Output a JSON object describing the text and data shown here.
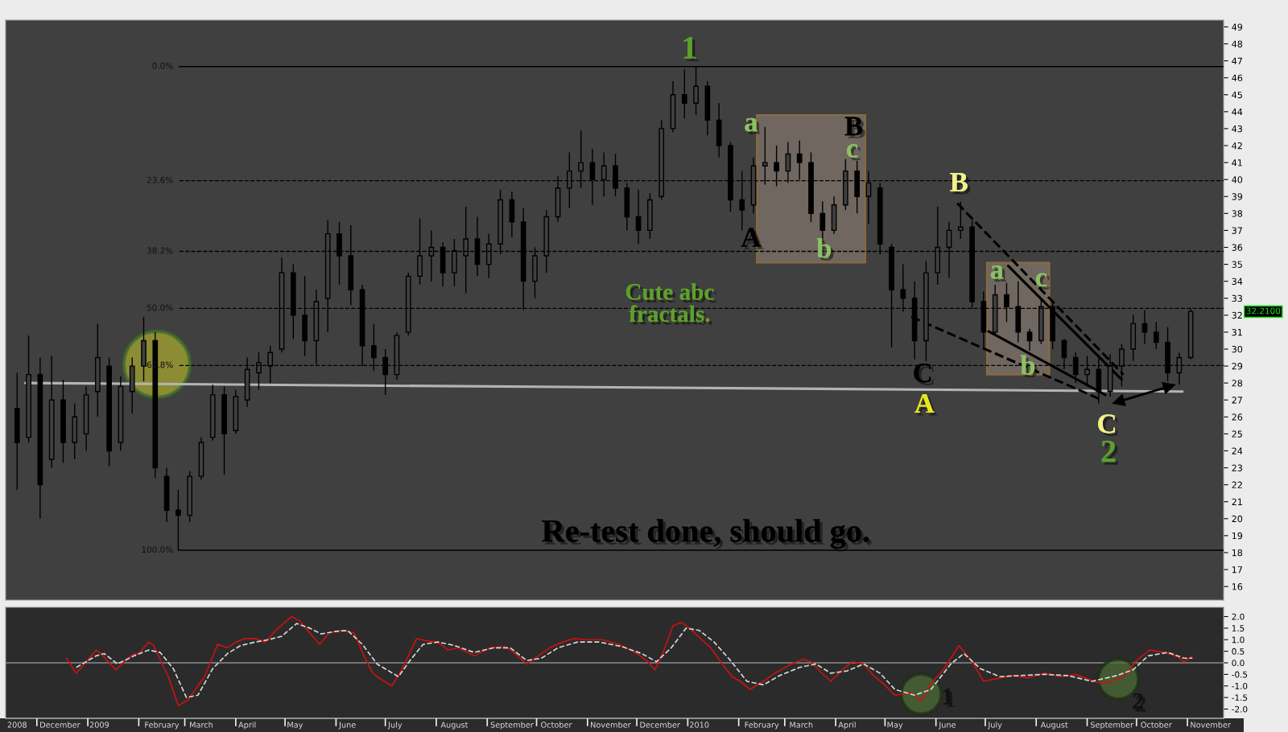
{
  "chart_data": [
    {
      "type": "candlestick",
      "xlim": [
        "2008-11-12",
        "2010-11-23"
      ],
      "ylim": [
        15.2,
        49.4
      ],
      "yticks": [
        16,
        17,
        18,
        19,
        20,
        21,
        22,
        23,
        24,
        25,
        26,
        27,
        28,
        29,
        30,
        31,
        32,
        33,
        34,
        35,
        36,
        37,
        38,
        39,
        40,
        41,
        42,
        43,
        44,
        45,
        46,
        47,
        48,
        49
      ],
      "y2lim": [
        110.3,
        -9.6
      ],
      "tick_labels": "y",
      "series": [
        {
          "type": "candlestick",
          "color": "#000000",
          "x": [
            "2008-11-19",
            "2008-11-26",
            "2008-12-03",
            "2008-12-10",
            "2008-12-17",
            "2008-12-24",
            "2008-12-31",
            "2009-01-07",
            "2009-01-14",
            "2009-01-21",
            "2009-01-28",
            "2009-02-04",
            "2009-02-11",
            "2009-02-18",
            "2009-02-25",
            "2009-03-04",
            "2009-03-11",
            "2009-03-18",
            "2009-03-25",
            "2009-04-01",
            "2009-04-08",
            "2009-04-15",
            "2009-04-22",
            "2009-04-29",
            "2009-05-06",
            "2009-05-13",
            "2009-05-20",
            "2009-05-27",
            "2009-06-03",
            "2009-06-10",
            "2009-06-17",
            "2009-06-24",
            "2009-07-01",
            "2009-07-08",
            "2009-07-15",
            "2009-07-22",
            "2009-07-29",
            "2009-08-05",
            "2009-08-12",
            "2009-08-19",
            "2009-08-26",
            "2009-09-02",
            "2009-09-09",
            "2009-09-16",
            "2009-09-23",
            "2009-09-30",
            "2009-10-07",
            "2009-10-14",
            "2009-10-21",
            "2009-10-28",
            "2009-11-04",
            "2009-11-11",
            "2009-11-18",
            "2009-11-25",
            "2009-12-02",
            "2009-12-09",
            "2009-12-16",
            "2009-12-23",
            "2009-12-30",
            "2010-01-06",
            "2010-01-13",
            "2010-01-20",
            "2010-01-27",
            "2010-02-03",
            "2010-02-10",
            "2010-02-17",
            "2010-02-24",
            "2010-03-03",
            "2010-03-10",
            "2010-03-17",
            "2010-03-24",
            "2010-03-31",
            "2010-04-07",
            "2010-04-14",
            "2010-04-21",
            "2010-04-28",
            "2010-05-05",
            "2010-05-12",
            "2010-05-19",
            "2010-05-26",
            "2010-06-02",
            "2010-06-09",
            "2010-06-16",
            "2010-06-23",
            "2010-06-30",
            "2010-07-07",
            "2010-07-14",
            "2010-07-21",
            "2010-07-28",
            "2010-08-04",
            "2010-08-11",
            "2010-08-18",
            "2010-08-25",
            "2010-09-01",
            "2010-09-08",
            "2010-09-15",
            "2010-09-22",
            "2010-09-29",
            "2010-10-06",
            "2010-10-13",
            "2010-10-20",
            "2010-10-27",
            "2010-11-03"
          ],
          "ohlc": [
            [
              26.5,
              28.6,
              21.7,
              24.5
            ],
            [
              24.8,
              30.8,
              24.5,
              28.5
            ],
            [
              28.5,
              29.5,
              20.0,
              22.0
            ],
            [
              23.5,
              29.6,
              23.0,
              27.0
            ],
            [
              27.0,
              28.2,
              23.3,
              24.5
            ],
            [
              24.5,
              26.8,
              23.5,
              26.0
            ],
            [
              25.0,
              27.8,
              24.0,
              27.3
            ],
            [
              27.5,
              31.5,
              26.0,
              29.5
            ],
            [
              29.0,
              29.5,
              23.1,
              24.0
            ],
            [
              24.5,
              28.4,
              24.0,
              27.8
            ],
            [
              27.5,
              29.5,
              26.2,
              29.0
            ],
            [
              29.0,
              31.9,
              28.1,
              30.5
            ],
            [
              30.5,
              31.0,
              22.4,
              23.0
            ],
            [
              22.5,
              23.0,
              19.8,
              20.5
            ],
            [
              20.5,
              21.7,
              18.1,
              20.2
            ],
            [
              20.2,
              22.8,
              19.8,
              22.5
            ],
            [
              22.5,
              24.8,
              22.3,
              24.5
            ],
            [
              24.8,
              27.9,
              24.6,
              27.3
            ],
            [
              27.3,
              27.8,
              22.6,
              25.0
            ],
            [
              25.2,
              27.6,
              25.0,
              27.2
            ],
            [
              27.0,
              29.5,
              26.6,
              28.8
            ],
            [
              28.6,
              29.8,
              27.6,
              29.2
            ],
            [
              29.0,
              30.2,
              28.0,
              29.8
            ],
            [
              30.0,
              35.4,
              29.8,
              34.5
            ],
            [
              34.5,
              35.0,
              30.6,
              32.0
            ],
            [
              32.0,
              34.3,
              29.6,
              30.5
            ],
            [
              30.5,
              33.5,
              29.1,
              32.8
            ],
            [
              33.0,
              37.6,
              31.0,
              36.8
            ],
            [
              36.8,
              37.5,
              33.8,
              35.5
            ],
            [
              35.5,
              37.3,
              32.6,
              33.5
            ],
            [
              33.5,
              33.8,
              29.0,
              30.2
            ],
            [
              30.2,
              31.5,
              28.7,
              29.5
            ],
            [
              29.5,
              30.0,
              27.3,
              28.5
            ],
            [
              28.5,
              31.0,
              28.2,
              30.8
            ],
            [
              31.0,
              34.5,
              30.8,
              34.3
            ],
            [
              34.3,
              37.7,
              33.8,
              35.5
            ],
            [
              35.5,
              37.0,
              34.0,
              36.0
            ],
            [
              36.0,
              36.3,
              33.7,
              34.5
            ],
            [
              34.5,
              36.5,
              33.7,
              35.8
            ],
            [
              35.5,
              38.4,
              33.3,
              36.5
            ],
            [
              36.5,
              37.8,
              34.3,
              35.0
            ],
            [
              35.0,
              36.8,
              34.2,
              36.2
            ],
            [
              36.2,
              39.4,
              35.6,
              38.8
            ],
            [
              38.8,
              39.3,
              36.6,
              37.5
            ],
            [
              37.5,
              38.3,
              32.3,
              34.0
            ],
            [
              34.0,
              36.0,
              33.0,
              35.5
            ],
            [
              35.5,
              38.2,
              34.5,
              37.8
            ],
            [
              37.8,
              40.2,
              37.5,
              39.5
            ],
            [
              39.5,
              41.6,
              38.3,
              40.5
            ],
            [
              40.5,
              42.9,
              39.5,
              41.0
            ],
            [
              41.0,
              41.8,
              38.5,
              40.0
            ],
            [
              40.0,
              41.6,
              39.0,
              40.8
            ],
            [
              40.8,
              41.5,
              39.0,
              39.5
            ],
            [
              39.5,
              39.8,
              37.0,
              37.8
            ],
            [
              37.8,
              39.4,
              36.2,
              37.0
            ],
            [
              37.0,
              39.2,
              36.5,
              38.8
            ],
            [
              39.0,
              43.5,
              38.8,
              43.0
            ],
            [
              43.0,
              45.8,
              42.8,
              45.0
            ],
            [
              45.0,
              46.5,
              43.6,
              44.5
            ],
            [
              44.5,
              46.7,
              43.8,
              45.5
            ],
            [
              45.5,
              45.8,
              42.6,
              43.5
            ],
            [
              43.5,
              44.5,
              41.3,
              42.0
            ],
            [
              42.0,
              42.2,
              38.1,
              38.8
            ],
            [
              38.8,
              40.5,
              37.0,
              38.2
            ],
            [
              38.5,
              41.3,
              38.0,
              40.8
            ],
            [
              40.8,
              43.1,
              39.7,
              41.0
            ],
            [
              41.0,
              42.0,
              39.6,
              40.5
            ],
            [
              40.5,
              42.2,
              39.8,
              41.5
            ],
            [
              41.5,
              42.3,
              40.0,
              41.0
            ],
            [
              41.0,
              41.6,
              37.5,
              38.0
            ],
            [
              38.0,
              38.7,
              36.3,
              37.0
            ],
            [
              37.0,
              39.0,
              36.8,
              38.5
            ],
            [
              38.5,
              41.2,
              38.2,
              40.5
            ],
            [
              40.5,
              41.1,
              38.0,
              39.0
            ],
            [
              39.0,
              40.5,
              37.4,
              39.8
            ],
            [
              39.5,
              39.8,
              35.6,
              36.2
            ],
            [
              36.0,
              36.2,
              30.1,
              33.5
            ],
            [
              33.5,
              35.0,
              32.2,
              33.0
            ],
            [
              33.0,
              34.0,
              29.4,
              30.5
            ],
            [
              30.5,
              35.2,
              29.3,
              34.5
            ],
            [
              34.5,
              38.4,
              33.8,
              36.0
            ],
            [
              36.0,
              37.5,
              34.2,
              37.0
            ],
            [
              37.0,
              38.7,
              36.5,
              37.2
            ],
            [
              37.2,
              37.6,
              32.4,
              32.8
            ],
            [
              32.8,
              33.4,
              30.0,
              31.0
            ],
            [
              31.0,
              33.8,
              30.8,
              33.2
            ],
            [
              33.2,
              33.9,
              31.6,
              32.5
            ],
            [
              32.5,
              34.0,
              30.4,
              31.0
            ],
            [
              31.0,
              31.2,
              29.9,
              30.5
            ],
            [
              30.5,
              33.0,
              30.3,
              32.5
            ],
            [
              32.5,
              32.8,
              30.0,
              30.5
            ],
            [
              30.5,
              30.6,
              28.8,
              29.5
            ],
            [
              29.5,
              29.8,
              28.0,
              28.5
            ],
            [
              28.5,
              29.6,
              27.8,
              28.8
            ],
            [
              28.8,
              29.5,
              26.8,
              27.5
            ],
            [
              27.5,
              29.7,
              27.2,
              29.0
            ],
            [
              29.0,
              30.3,
              27.8,
              30.0
            ],
            [
              30.0,
              32.0,
              29.3,
              31.5
            ],
            [
              31.5,
              32.3,
              30.3,
              31.0
            ],
            [
              31.0,
              31.6,
              30.0,
              30.4
            ],
            [
              30.4,
              31.3,
              28.1,
              28.6
            ],
            [
              28.6,
              29.8,
              27.9,
              29.5
            ],
            [
              29.5,
              32.4,
              29.4,
              32.21
            ]
          ]
        },
        {
          "type": "line",
          "color": "#b4b4b4",
          "x": [
            "2008-11-24",
            "2010-10-29"
          ],
          "values": [
            28.0,
            27.5
          ]
        },
        {
          "type": "line",
          "color": "#000000",
          "line_style": "dashed",
          "x": [
            "2010-06-14",
            "2010-09-23"
          ],
          "values": [
            38.6,
            28.5
          ]
        },
        {
          "type": "line",
          "color": "#000000",
          "line_style": "dashed",
          "x": [
            "2010-05-17",
            "2010-09-10"
          ],
          "values": [
            31.9,
            27.0
          ]
        },
        {
          "type": "line",
          "color": "#000000",
          "x": [
            "2010-07-15",
            "2010-09-22"
          ],
          "values": [
            34.9,
            28.2
          ]
        },
        {
          "type": "line",
          "color": "#000000",
          "x": [
            "2010-07-03",
            "2010-09-12"
          ],
          "values": [
            31.05,
            27.3
          ]
        },
        {
          "type": "line",
          "color": "#000000",
          "marker": "triangle",
          "x": [
            "2010-09-20",
            "2010-10-21"
          ],
          "values": [
            26.9,
            27.8
          ]
        },
        {
          "type": "line",
          "color": "#9e8e80",
          "x": [
            "2010-02-12",
            "2010-04-19"
          ],
          "values": [
            null,
            null
          ],
          "lower": [
            35.1,
            35.1
          ],
          "upper": [
            43.8,
            43.8
          ]
        },
        {
          "type": "line",
          "color": "#9e8e80",
          "x": [
            "2010-07-02",
            "2010-08-09"
          ],
          "values": [
            null,
            null
          ],
          "lower": [
            28.5,
            28.5
          ],
          "upper": [
            35.1,
            35.1
          ]
        },
        {
          "type": "bubble",
          "color": "#a6a630",
          "x": [
            "2009-02-12"
          ],
          "values": [
            29.1
          ],
          "sizes": [
            1
          ]
        }
      ],
      "ref_lines": [
        {
          "axis": "y2",
          "value": 0,
          "label": "0.0%",
          "color": "#000000",
          "line_style": "solid"
        },
        {
          "axis": "y2",
          "value": 23.6,
          "label": "23.6%",
          "color": "#000000",
          "line_style": "dashed"
        },
        {
          "axis": "y2",
          "value": 38.2,
          "label": "38.2%",
          "color": "#000000",
          "line_style": "dashed"
        },
        {
          "axis": "y2",
          "value": 50.0,
          "label": "50.0%",
          "color": "#000000",
          "line_style": "dashed"
        },
        {
          "axis": "y2",
          "value": 61.8,
          "label": "61.8%",
          "color": "#000000",
          "line_style": "dashed"
        },
        {
          "axis": "y2",
          "value": 100.0,
          "label": "100.0%",
          "color": "#000000",
          "line_style": "solid"
        }
      ],
      "annotations": [
        "1",
        "A",
        "a",
        "B",
        "c",
        "b",
        "Cute abc\nfractals.",
        "B",
        "C",
        "A",
        "a",
        "c",
        "b",
        "C",
        "2",
        "Re-test done, should go.",
        "32.2100"
      ]
    },
    {
      "type": "line",
      "xlim": [
        "2008-11-12",
        "2010-11-23"
      ],
      "ylim": [
        -2.4,
        2.4
      ],
      "yticks": [
        {
          "value": -2,
          "label": "-2.0"
        },
        -1.5,
        {
          "value": -1,
          "label": "-1.0"
        },
        -0.5,
        {
          "value": 0,
          "label": "0.0"
        },
        0.5,
        {
          "value": 1,
          "label": "1.0"
        },
        1.5,
        {
          "value": 2,
          "label": "2.0"
        }
      ],
      "xticks": [
        {
          "value": "2008-12-01",
          "label": null
        },
        {
          "value": "2009-01-01",
          "label": null
        },
        {
          "value": "2009-02-01",
          "label": null
        },
        {
          "value": "2009-03-01",
          "label": null
        },
        {
          "value": "2009-04-01",
          "label": null
        },
        {
          "value": "2009-05-01",
          "label": null
        },
        {
          "value": "2009-06-01",
          "label": null
        },
        {
          "value": "2009-07-01",
          "label": null
        },
        {
          "value": "2009-08-01",
          "label": null
        },
        {
          "value": "2009-09-01",
          "label": null
        },
        {
          "value": "2009-10-01",
          "label": null
        },
        {
          "value": "2009-11-01",
          "label": null
        },
        {
          "value": "2009-12-01",
          "label": null
        },
        {
          "value": "2010-01-01",
          "label": null
        },
        {
          "value": "2010-02-01",
          "label": null
        },
        {
          "value": "2010-03-01",
          "label": null
        },
        {
          "value": "2010-04-01",
          "label": null
        },
        {
          "value": "2010-05-01",
          "label": null
        },
        {
          "value": "2010-06-01",
          "label": null
        },
        {
          "value": "2010-07-01",
          "label": null
        },
        {
          "value": "2010-08-01",
          "label": null
        },
        {
          "value": "2010-09-01",
          "label": null
        },
        {
          "value": "2010-10-01",
          "label": null
        },
        {
          "value": "2010-11-01",
          "label": null
        },
        {
          "value": "2008-11-19",
          "label": "2008"
        },
        {
          "value": "2008-12-15",
          "label": "December"
        },
        {
          "value": "2009-01-08",
          "label": "2009"
        },
        {
          "value": "2009-02-15",
          "label": "February"
        },
        {
          "value": "2009-03-11",
          "label": "March"
        },
        {
          "value": "2009-04-08",
          "label": "April"
        },
        {
          "value": "2009-05-07",
          "label": "May"
        },
        {
          "value": "2009-06-08",
          "label": "June"
        },
        {
          "value": "2009-07-07",
          "label": "July"
        },
        {
          "value": "2009-08-12",
          "label": "August"
        },
        {
          "value": "2009-09-16",
          "label": "September"
        },
        {
          "value": "2009-10-13",
          "label": "October"
        },
        {
          "value": "2009-11-15",
          "label": "November"
        },
        {
          "value": "2009-12-15",
          "label": "December"
        },
        {
          "value": "2010-01-08",
          "label": "2010"
        },
        {
          "value": "2010-02-15",
          "label": "February"
        },
        {
          "value": "2010-03-11",
          "label": "March"
        },
        {
          "value": "2010-04-08",
          "label": "April"
        },
        {
          "value": "2010-05-07",
          "label": "May"
        },
        {
          "value": "2010-06-08",
          "label": "June"
        },
        {
          "value": "2010-07-07",
          "label": "July"
        },
        {
          "value": "2010-08-12",
          "label": "August"
        },
        {
          "value": "2010-09-16",
          "label": "September"
        },
        {
          "value": "2010-10-13",
          "label": "October"
        },
        {
          "value": "2010-11-15",
          "label": "November"
        }
      ],
      "series": [
        {
          "color": "#cc1111",
          "x": [
            "2008-12-19",
            "2008-12-25",
            "2009-01-06",
            "2009-01-09",
            "2009-01-18",
            "2009-01-28",
            "2009-02-01",
            "2009-02-07",
            "2009-02-10",
            "2009-02-19",
            "2009-02-25",
            "2009-03-03",
            "2009-03-13",
            "2009-03-21",
            "2009-03-27",
            "2009-04-01",
            "2009-04-07",
            "2009-04-13",
            "2009-04-19",
            "2009-04-26",
            "2009-05-05",
            "2009-05-10",
            "2009-05-16",
            "2009-05-22",
            "2009-05-28",
            "2009-06-04",
            "2009-06-12",
            "2009-06-18",
            "2009-06-23",
            "2009-06-26",
            "2009-07-05",
            "2009-07-11",
            "2009-07-20",
            "2009-07-26",
            "2009-08-02",
            "2009-08-08",
            "2009-08-14",
            "2009-08-24",
            "2009-09-03",
            "2009-09-12",
            "2009-09-17",
            "2009-09-25",
            "2009-10-02",
            "2009-10-09",
            "2009-10-17",
            "2009-10-24",
            "2009-10-31",
            "2009-11-10",
            "2009-11-20",
            "2009-11-30",
            "2009-12-07",
            "2009-12-12",
            "2009-12-17",
            "2009-12-23",
            "2009-12-28",
            "2010-01-02",
            "2010-01-08",
            "2010-01-15",
            "2010-01-22",
            "2010-01-28",
            "2010-02-02",
            "2010-02-08",
            "2010-02-16",
            "2010-02-23",
            "2010-03-05",
            "2010-03-12",
            "2010-03-17",
            "2010-03-23",
            "2010-03-29",
            "2010-04-06",
            "2010-04-11",
            "2010-04-18",
            "2010-04-24",
            "2010-04-30",
            "2010-05-07",
            "2010-05-17",
            "2010-05-23",
            "2010-05-29",
            "2010-06-06",
            "2010-06-15",
            "2010-06-23",
            "2010-06-30",
            "2010-07-07",
            "2010-07-17",
            "2010-07-27",
            "2010-08-06",
            "2010-08-16",
            "2010-08-25",
            "2010-09-07",
            "2010-09-14",
            "2010-09-24",
            "2010-10-01",
            "2010-10-09",
            "2010-10-18",
            "2010-10-25",
            "2010-10-30",
            "2010-11-04"
          ],
          "values": [
            0.2,
            -0.45,
            0.55,
            0.4,
            -0.3,
            0.35,
            0.4,
            0.9,
            0.75,
            -0.6,
            -1.85,
            -1.6,
            -0.6,
            0.8,
            0.65,
            0.9,
            1.05,
            1.05,
            0.9,
            1.45,
            2.0,
            1.8,
            1.3,
            0.8,
            1.3,
            1.4,
            1.3,
            0.3,
            -0.4,
            -0.6,
            -1.0,
            -0.3,
            1.05,
            0.95,
            0.9,
            0.55,
            0.65,
            0.3,
            0.65,
            0.7,
            0.45,
            -0.05,
            0.3,
            0.65,
            0.9,
            1.05,
            1.0,
            1.0,
            0.8,
            0.45,
            0.1,
            -0.3,
            0.45,
            1.6,
            1.75,
            1.5,
            1.1,
            0.65,
            -0.05,
            -0.6,
            -0.8,
            -1.15,
            -0.8,
            -0.45,
            -0.05,
            0.15,
            0.05,
            -0.4,
            -0.8,
            -0.25,
            0.05,
            -0.05,
            -0.55,
            -0.9,
            -1.4,
            -1.3,
            -1.65,
            -0.9,
            -0.25,
            0.75,
            0.05,
            -0.8,
            -0.7,
            -0.55,
            -0.65,
            -0.45,
            -0.6,
            -0.5,
            -0.85,
            -0.85,
            -0.55,
            0.1,
            0.55,
            0.45,
            0.3,
            0.05,
            0.3
          ]
        },
        {
          "color": "#d8d8d8",
          "line_style": "dashed",
          "x": [
            "2008-12-25",
            "2009-01-06",
            "2009-01-11",
            "2009-01-19",
            "2009-01-29",
            "2009-02-07",
            "2009-02-14",
            "2009-02-22",
            "2009-03-02",
            "2009-03-09",
            "2009-03-18",
            "2009-03-27",
            "2009-04-04",
            "2009-04-13",
            "2009-04-21",
            "2009-04-29",
            "2009-05-08",
            "2009-05-16",
            "2009-05-23",
            "2009-05-31",
            "2009-06-08",
            "2009-06-17",
            "2009-06-26",
            "2009-07-09",
            "2009-07-16",
            "2009-07-24",
            "2009-08-02",
            "2009-08-12",
            "2009-08-24",
            "2009-09-05",
            "2009-09-15",
            "2009-09-25",
            "2009-10-04",
            "2009-10-14",
            "2009-10-26",
            "2009-11-08",
            "2009-11-22",
            "2009-12-04",
            "2009-12-13",
            "2009-12-22",
            "2009-12-31",
            "2010-01-08",
            "2010-01-17",
            "2010-01-27",
            "2010-02-06",
            "2010-02-16",
            "2010-02-26",
            "2010-03-10",
            "2010-03-20",
            "2010-03-29",
            "2010-04-08",
            "2010-04-18",
            "2010-04-28",
            "2010-05-07",
            "2010-05-19",
            "2010-05-29",
            "2010-06-10",
            "2010-06-18",
            "2010-06-28",
            "2010-07-10",
            "2010-07-22",
            "2010-08-06",
            "2010-08-20",
            "2010-09-04",
            "2010-09-19",
            "2010-09-29",
            "2010-10-08",
            "2010-10-20",
            "2010-10-30",
            "2010-11-04"
          ],
          "values": [
            -0.2,
            0.3,
            0.4,
            -0.05,
            0.3,
            0.55,
            0.45,
            -0.25,
            -1.5,
            -1.4,
            -0.25,
            0.4,
            0.75,
            0.9,
            1.0,
            1.15,
            1.7,
            1.5,
            1.25,
            1.35,
            1.4,
            0.8,
            -0.05,
            -0.6,
            0.1,
            0.8,
            0.9,
            0.75,
            0.45,
            0.65,
            0.65,
            0.1,
            0.2,
            0.65,
            0.9,
            0.9,
            0.7,
            0.4,
            0.05,
            0.65,
            1.5,
            1.4,
            0.9,
            0.1,
            -0.8,
            -0.95,
            -0.55,
            -0.2,
            -0.05,
            -0.45,
            -0.35,
            -0.05,
            -0.45,
            -1.15,
            -1.4,
            -1.15,
            -0.05,
            0.4,
            -0.25,
            -0.6,
            -0.55,
            -0.5,
            -0.55,
            -0.8,
            -0.55,
            -0.3,
            0.3,
            0.45,
            0.2,
            0.2
          ]
        },
        {
          "type": "bubble",
          "color": "#4d6b35",
          "x": [
            "2010-05-23",
            "2010-09-20"
          ],
          "values": [
            -1.35,
            -0.7
          ],
          "sizes": [
            1,
            1
          ]
        }
      ],
      "ref_lines": [
        {
          "axis": "y",
          "value": 0,
          "color": "#8c8c8c"
        }
      ],
      "annotations": [
        "1",
        "2"
      ]
    }
  ]
}
